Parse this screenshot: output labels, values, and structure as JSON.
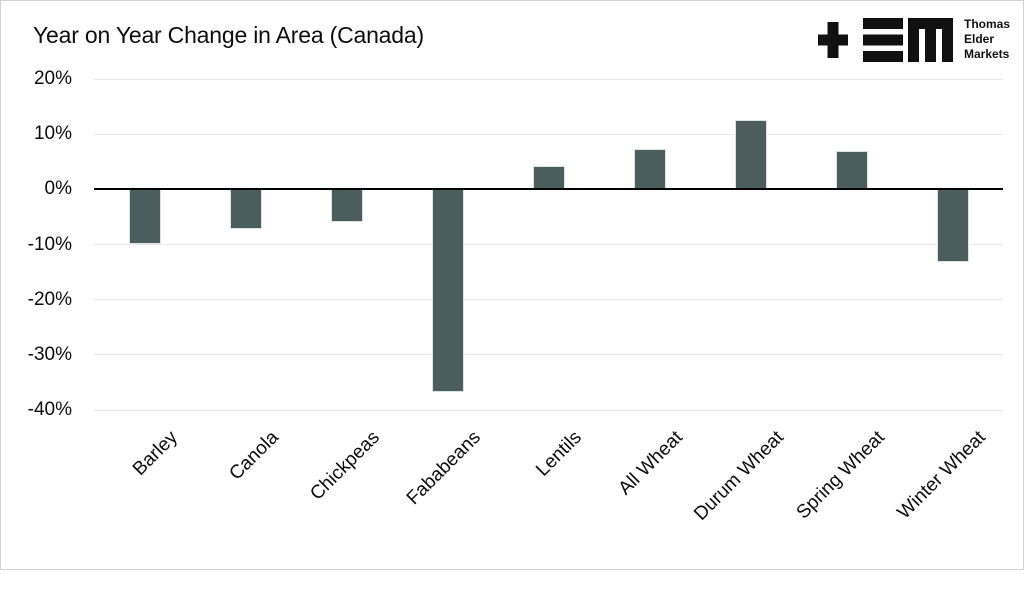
{
  "header": {
    "title": "Year on Year Change in Area (Canada)",
    "logo": {
      "lines": [
        "Thomas",
        "Elder",
        "Markets"
      ]
    }
  },
  "chart_data": {
    "type": "bar",
    "title": "Year on Year Change in Area (Canada)",
    "categories": [
      "Barley",
      "Canola",
      "Chickpeas",
      "Fababeans",
      "Lentils",
      "All Wheat",
      "Durum Wheat",
      "Spring Wheat",
      "Winter Wheat"
    ],
    "values": [
      -9.9,
      -7.2,
      -5.9,
      -36.8,
      4.2,
      7.4,
      12.5,
      6.9,
      -13.1
    ],
    "xlabel": "",
    "ylabel": "",
    "ylim": [
      -40,
      20
    ],
    "yticks": [
      {
        "label": "20%",
        "value": 20
      },
      {
        "label": "10%",
        "value": 10
      },
      {
        "label": "0%",
        "value": 0
      },
      {
        "label": "-10%",
        "value": -10
      },
      {
        "label": "-20%",
        "value": -20
      },
      {
        "label": "-30%",
        "value": -30
      },
      {
        "label": "-40%",
        "value": -40
      }
    ],
    "grid": true,
    "legend": false,
    "bar_color": "#4C5D5E",
    "bar_border_color": "#DCE3E3",
    "gridline_color": "#E7E7E7",
    "axis_color": "#000000",
    "text_color": "#0D0D0D"
  }
}
